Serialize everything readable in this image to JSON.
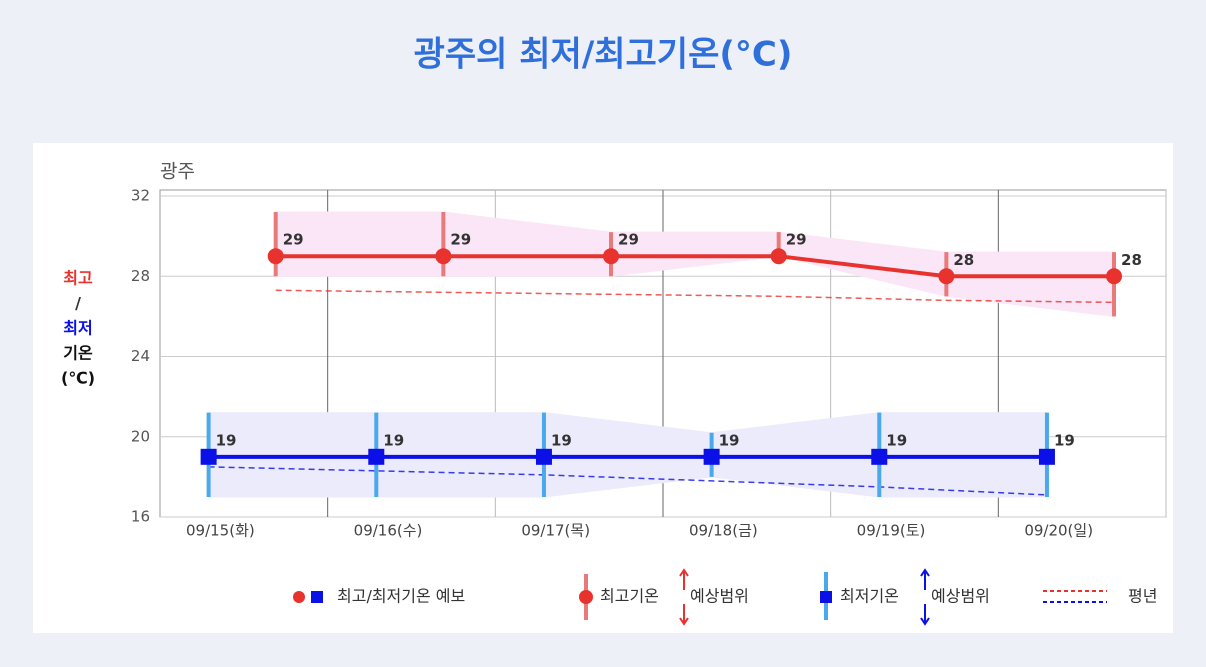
{
  "title": "광주의 최저/최고기온(°C)",
  "chart_data": {
    "type": "line",
    "title": "광주",
    "y_label": [
      "최고",
      "/",
      "최저",
      "기온",
      "(℃)"
    ],
    "categories": [
      "09/15(화)",
      "09/16(수)",
      "09/17(목)",
      "09/18(금)",
      "09/19(토)",
      "09/20(일)"
    ],
    "ylim": [
      16,
      32
    ],
    "yticks": [
      16,
      20,
      24,
      28,
      32
    ],
    "grid": true,
    "series": [
      {
        "name": "최고기온",
        "color": "#e8322d",
        "range_color": "#e87a7a",
        "band_color": "#fbe6f7",
        "marker": "circle",
        "values": [
          29,
          29,
          29,
          29,
          28,
          28
        ],
        "range_high": [
          31.2,
          31.2,
          30.2,
          30.2,
          29.2,
          29.2
        ],
        "range_low": [
          28,
          28,
          28,
          29,
          27,
          26
        ],
        "normal": [
          27.3,
          27.2,
          27.1,
          27.0,
          26.8,
          26.7
        ]
      },
      {
        "name": "최저기온",
        "color": "#0a10e6",
        "range_color": "#4aa8ec",
        "band_color": "#ebebfb",
        "marker": "square",
        "values": [
          19,
          19,
          19,
          19,
          19,
          19
        ],
        "range_high": [
          21.2,
          21.2,
          21.2,
          20.2,
          21.2,
          21.2
        ],
        "range_low": [
          17,
          17,
          17,
          18,
          17,
          17
        ],
        "normal": [
          18.5,
          18.3,
          18.1,
          17.8,
          17.5,
          17.1
        ]
      }
    ],
    "legend": {
      "forecast": "최고/최저기온 예보",
      "range": "예상범위",
      "normal": "평년"
    }
  }
}
